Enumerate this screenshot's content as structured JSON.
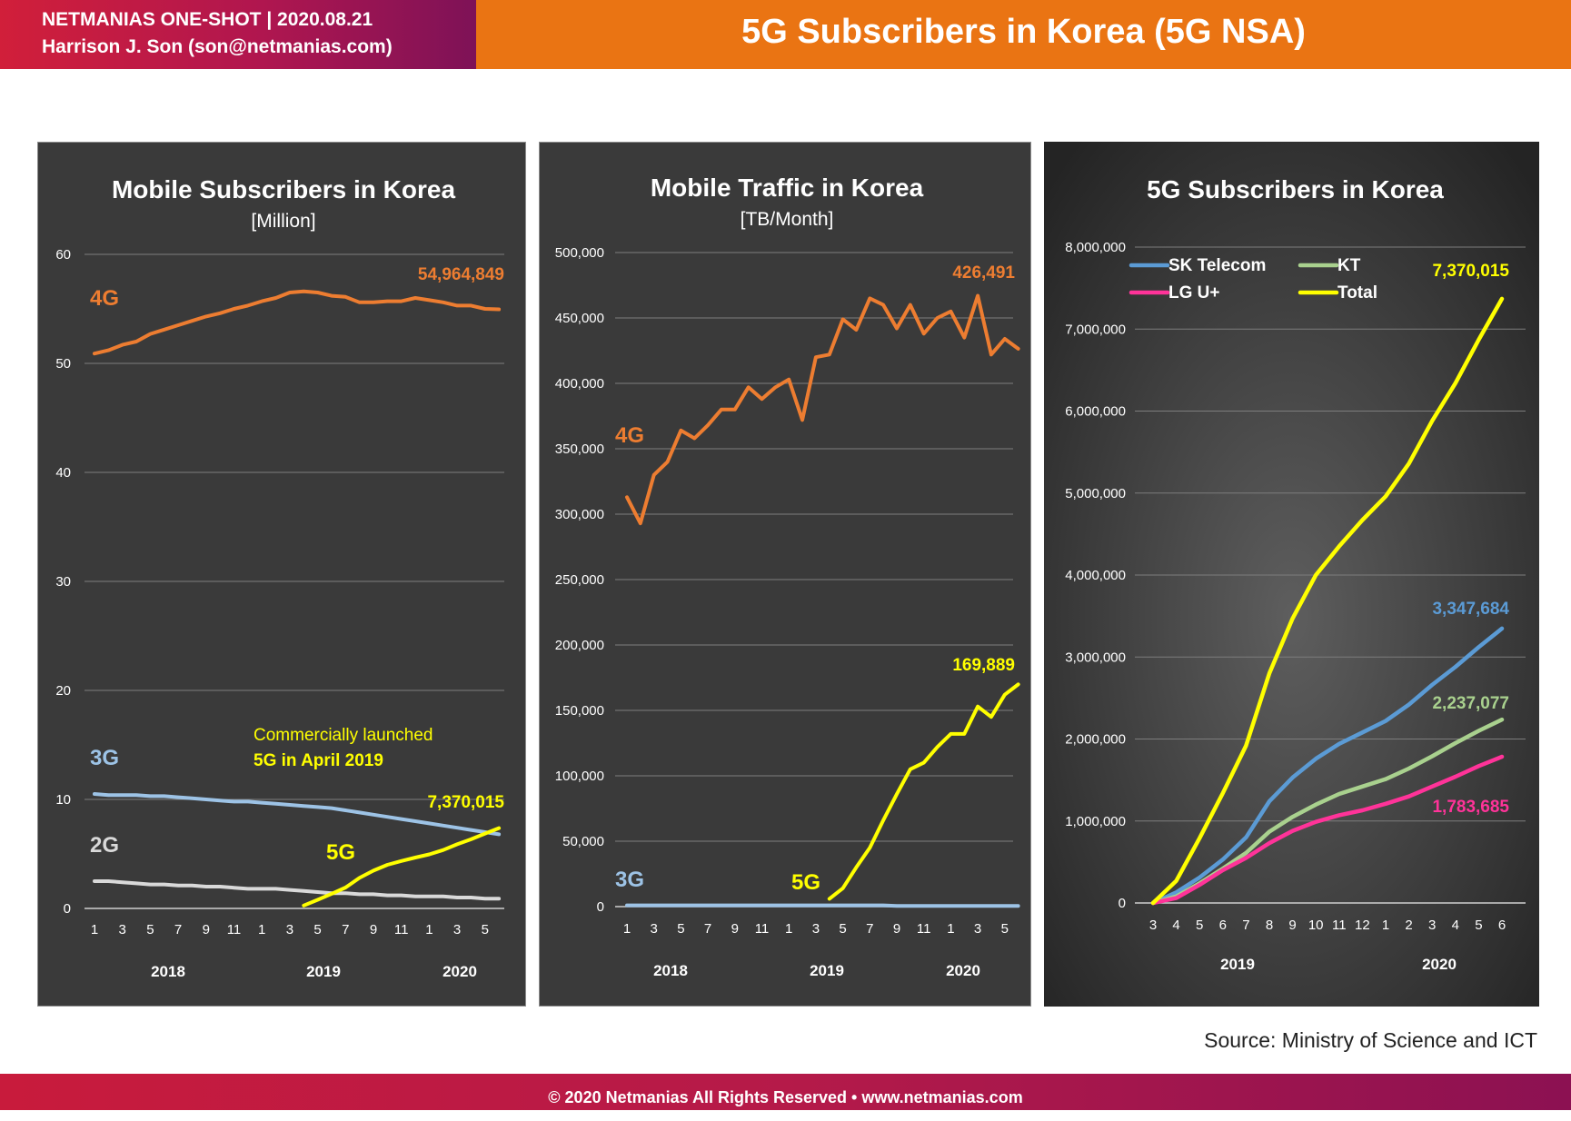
{
  "header": {
    "line1": "NETMANIAS ONE-SHOT  |  2020.08.21",
    "line2": "Harrison J. Son (son@netmanias.com)",
    "title": "5G Subscribers in Korea (5G NSA)"
  },
  "source": "Source: Ministry of Science and ICT",
  "footer": "© 2020 Netmanias All Rights Reserved • www.netmanias.com",
  "colors": {
    "header_accent": "#ea7413",
    "brand_red": "#c81b3c",
    "panel_bg": "#3a3a3a",
    "series_4g": "#ed7d31",
    "series_3g": "#9dc3e6",
    "series_2g": "#d9d9d9",
    "series_5g": "#ffff00",
    "skt": "#5b9bd5",
    "kt": "#a9d18e",
    "lgu": "#ff3399"
  },
  "chart_data": [
    {
      "type": "line",
      "title": "Mobile Subscribers in Korea",
      "subtitle": "[Million]",
      "ylim": [
        0,
        60
      ],
      "yticks": [
        "0",
        "10",
        "20",
        "30",
        "40",
        "50",
        "60"
      ],
      "x_tick_labels": [
        "1",
        "3",
        "5",
        "7",
        "9",
        "11",
        "1",
        "3",
        "5",
        "7",
        "9",
        "11",
        "1",
        "3",
        "5"
      ],
      "year_labels": [
        "2018",
        "2019",
        "2020"
      ],
      "grid": true,
      "series": [
        {
          "name": "4G",
          "color": "#ed7d31",
          "values": [
            50.9,
            51.2,
            51.7,
            52.0,
            52.7,
            53.1,
            53.5,
            53.9,
            54.3,
            54.6,
            55.0,
            55.3,
            55.7,
            56.0,
            56.5,
            56.6,
            56.5,
            56.2,
            56.1,
            55.6,
            55.6,
            55.7,
            55.7,
            56.0,
            55.8,
            55.6,
            55.3,
            55.3,
            55.0,
            54.96
          ]
        },
        {
          "name": "3G",
          "color": "#9dc3e6",
          "values": [
            10.5,
            10.4,
            10.4,
            10.4,
            10.3,
            10.3,
            10.2,
            10.1,
            10.0,
            9.9,
            9.8,
            9.8,
            9.7,
            9.6,
            9.5,
            9.4,
            9.3,
            9.2,
            9.0,
            8.8,
            8.6,
            8.4,
            8.2,
            8.0,
            7.8,
            7.6,
            7.4,
            7.2,
            7.0,
            6.8
          ]
        },
        {
          "name": "2G",
          "color": "#d9d9d9",
          "values": [
            2.5,
            2.5,
            2.4,
            2.3,
            2.2,
            2.2,
            2.1,
            2.1,
            2.0,
            2.0,
            1.9,
            1.8,
            1.8,
            1.8,
            1.7,
            1.6,
            1.5,
            1.4,
            1.4,
            1.3,
            1.3,
            1.2,
            1.2,
            1.1,
            1.1,
            1.1,
            1.0,
            1.0,
            0.9,
            0.9
          ]
        },
        {
          "name": "5G",
          "color": "#ffff00",
          "start_index": 15,
          "values": [
            0.27,
            0.79,
            1.34,
            1.92,
            2.8,
            3.47,
            4.0,
            4.35,
            4.67,
            4.96,
            5.36,
            5.88,
            6.34,
            6.87,
            7.37
          ]
        }
      ],
      "annotations": {
        "value_4g": "54,964,849",
        "value_5g": "7,370,015",
        "launch_line1": "Commercially launched",
        "launch_line2": "5G in April 2019"
      }
    },
    {
      "type": "line",
      "title": "Mobile Traffic in Korea",
      "subtitle": "[TB/Month]",
      "ylim": [
        0,
        500000
      ],
      "yticks": [
        "0",
        "50,000",
        "100,000",
        "150,000",
        "200,000",
        "250,000",
        "300,000",
        "350,000",
        "400,000",
        "450,000",
        "500,000"
      ],
      "x_tick_labels": [
        "1",
        "3",
        "5",
        "7",
        "9",
        "11",
        "1",
        "3",
        "5",
        "7",
        "9",
        "11",
        "1",
        "3",
        "5"
      ],
      "year_labels": [
        "2018",
        "2019",
        "2020"
      ],
      "grid": true,
      "series": [
        {
          "name": "4G",
          "color": "#ed7d31",
          "values": [
            313000,
            293000,
            330000,
            340000,
            364000,
            358000,
            368000,
            380000,
            380000,
            397000,
            388000,
            397000,
            403000,
            372000,
            420000,
            422000,
            449000,
            441000,
            465000,
            460000,
            442000,
            460000,
            438000,
            450000,
            455000,
            435000,
            467000,
            422000,
            434000,
            426491
          ]
        },
        {
          "name": "3G",
          "color": "#9dc3e6",
          "values": [
            1000,
            1000,
            1000,
            1000,
            1000,
            1000,
            1000,
            1000,
            1000,
            1000,
            1000,
            1000,
            1000,
            1000,
            1000,
            1000,
            1000,
            1000,
            1000,
            1000,
            500,
            500,
            500,
            500,
            500,
            500,
            500,
            500,
            500,
            500
          ]
        },
        {
          "name": "5G",
          "color": "#ffff00",
          "start_index": 15,
          "values": [
            6000,
            14000,
            30000,
            45000,
            66000,
            86000,
            105000,
            110000,
            122000,
            132000,
            132000,
            153000,
            145000,
            162000,
            169889
          ]
        }
      ],
      "annotations": {
        "value_4g": "426,491",
        "value_5g": "169,889"
      }
    },
    {
      "type": "line",
      "title": "5G Subscribers in Korea",
      "ylim": [
        0,
        8000000
      ],
      "yticks": [
        "0",
        "1,000,000",
        "2,000,000",
        "3,000,000",
        "4,000,000",
        "5,000,000",
        "6,000,000",
        "7,000,000",
        "8,000,000"
      ],
      "x_tick_labels": [
        "3",
        "4",
        "5",
        "6",
        "7",
        "8",
        "9",
        "10",
        "11",
        "12",
        "1",
        "2",
        "3",
        "4",
        "5",
        "6"
      ],
      "year_labels": [
        "2019",
        "2020"
      ],
      "grid": true,
      "legend_position": "top",
      "series": [
        {
          "name": "SK Telecom",
          "color": "#5b9bd5",
          "values": [
            0,
            130000,
            310000,
            530000,
            800000,
            1240000,
            1530000,
            1760000,
            1940000,
            2080000,
            2220000,
            2420000,
            2660000,
            2880000,
            3120000,
            3347684
          ]
        },
        {
          "name": "KT",
          "color": "#a9d18e",
          "values": [
            0,
            80000,
            240000,
            420000,
            610000,
            870000,
            1050000,
            1200000,
            1330000,
            1420000,
            1510000,
            1640000,
            1790000,
            1950000,
            2100000,
            2237077
          ]
        },
        {
          "name": "LG U+",
          "color": "#ff3399",
          "values": [
            0,
            60000,
            220000,
            400000,
            550000,
            730000,
            880000,
            990000,
            1070000,
            1130000,
            1210000,
            1300000,
            1420000,
            1540000,
            1670000,
            1783685
          ]
        },
        {
          "name": "Total",
          "color": "#ffff00",
          "values": [
            0,
            270000,
            790000,
            1340000,
            1920000,
            2800000,
            3470000,
            4000000,
            4350000,
            4670000,
            4960000,
            5360000,
            5880000,
            6340000,
            6870000,
            7370015
          ]
        }
      ],
      "annotations": {
        "value_total": "7,370,015",
        "value_skt": "3,347,684",
        "value_kt": "2,237,077",
        "value_lgu": "1,783,685"
      }
    }
  ]
}
